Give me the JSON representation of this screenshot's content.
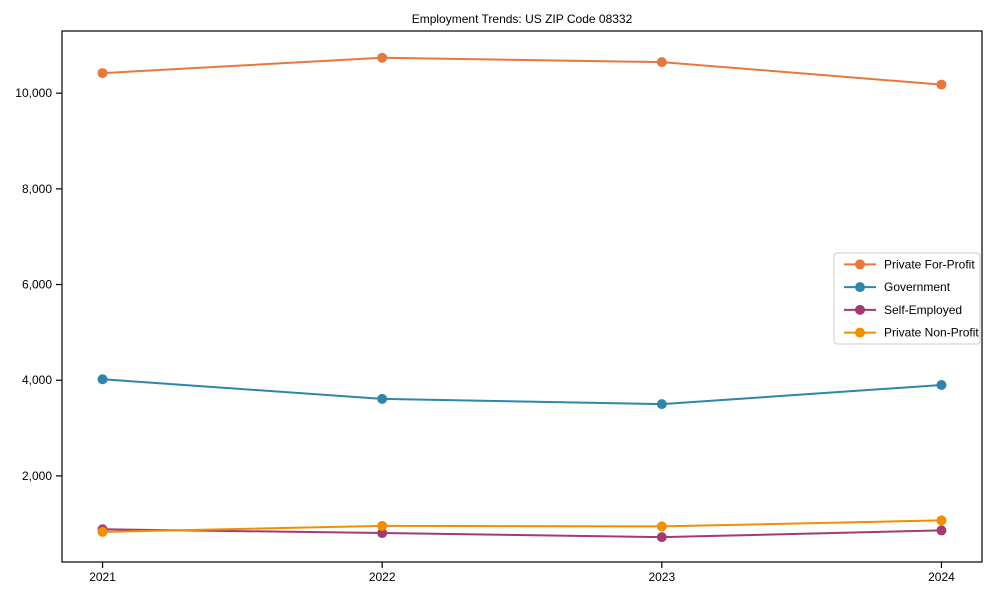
{
  "figure": {
    "title": "Employment Trends: US ZIP Code 08332"
  },
  "chart_data": {
    "type": "line",
    "title": "Employment Trends: US ZIP Code 08332",
    "xlabel": "",
    "ylabel": "",
    "x": [
      2021,
      2022,
      2023,
      2024
    ],
    "x_tick_labels": [
      "2021",
      "2022",
      "2023",
      "2024"
    ],
    "y_ticks": [
      2000,
      4000,
      6000,
      8000,
      10000
    ],
    "y_tick_labels": [
      "2,000",
      "4,000",
      "6,000",
      "8,000",
      "10,000"
    ],
    "xlim": [
      2020.855,
      2024.145
    ],
    "ylim": [
      200,
      11300
    ],
    "grid": "off",
    "legend_position": "right-center",
    "series": [
      {
        "name": "Private For-Profit",
        "color": "#E8773D",
        "values": [
          10420,
          10740,
          10650,
          10180
        ]
      },
      {
        "name": "Government",
        "color": "#2E86AB",
        "values": [
          4020,
          3610,
          3500,
          3900
        ]
      },
      {
        "name": "Self-Employed",
        "color": "#A23B72",
        "values": [
          885,
          805,
          720,
          860
        ]
      },
      {
        "name": "Private Non-Profit",
        "color": "#F18F01",
        "values": [
          830,
          955,
          945,
          1070
        ]
      }
    ],
    "marker": "circle",
    "marker_radius": 5,
    "line_width": 2,
    "axis_color": "#000000",
    "legend_border_color": "#cccccc",
    "background_color": "#ffffff"
  }
}
